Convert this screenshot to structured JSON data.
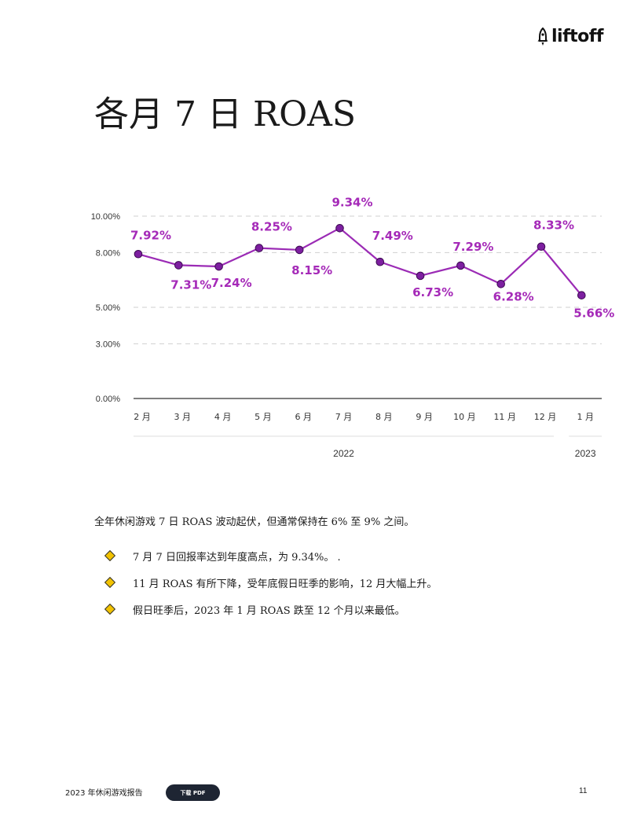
{
  "header": {
    "logo_text": "liftoff",
    "logo_icon": "rocket-icon"
  },
  "title": "各月 7 日 ROAS",
  "chart_data": {
    "type": "line",
    "title": "",
    "xlabel": "",
    "ylabel": "",
    "categories": [
      "2 月",
      "3 月",
      "4 月",
      "5 月",
      "6 月",
      "7 月",
      "8 月",
      "9 月",
      "10 月",
      "11 月",
      "12 月",
      "1 月"
    ],
    "groups": [
      {
        "label": "2022",
        "from": 0,
        "to": 10
      },
      {
        "label": "2023",
        "from": 11,
        "to": 11
      }
    ],
    "series": [
      {
        "name": "",
        "color": "#9b2bb5",
        "values": [
          7.92,
          7.31,
          7.24,
          8.25,
          8.15,
          9.34,
          7.49,
          6.73,
          7.29,
          6.28,
          8.33,
          5.66
        ],
        "labels": [
          "7.92%",
          "7.31%",
          "7.24%",
          "8.25%",
          "8.15%",
          "9.34%",
          "7.49%",
          "6.73%",
          "7.29%",
          "6.28%",
          "8.33%",
          "5.66%"
        ]
      }
    ],
    "y_ticks": [
      {
        "value": 0,
        "label": "0.00%"
      },
      {
        "value": 3,
        "label": "3.00%"
      },
      {
        "value": 5,
        "label": "5.00%"
      },
      {
        "value": 8,
        "label": "8.00%"
      },
      {
        "value": 10,
        "label": "10.00%"
      }
    ],
    "ylim": [
      0,
      10
    ],
    "grid": "dashed horizontal",
    "legend": "none",
    "line_color": "#9b2bb5",
    "marker_color": "#7d1fa0",
    "label_color": "#a52ab8"
  },
  "summary": "全年休闲游戏 7 日 ROAS 波动起伏，但通常保持在 6% 至 9% 之间。",
  "bullets": [
    "7 月 7 日回报率达到年度高点，为 9.34%。 .",
    "11 月 ROAS 有所下降，受年底假日旺季的影响，12 月大幅上升。",
    "假日旺季后，2023 年 1 月 ROAS 跌至 12 个月以来最低。"
  ],
  "footer": {
    "report_title": "2023 年休闲游戏报告",
    "download_button": "下载 PDF",
    "page_number": "11"
  },
  "colors": {
    "accent": "#9b2bb5",
    "bullet_diamond": "#f2c200",
    "button_bg": "#1e2533"
  }
}
